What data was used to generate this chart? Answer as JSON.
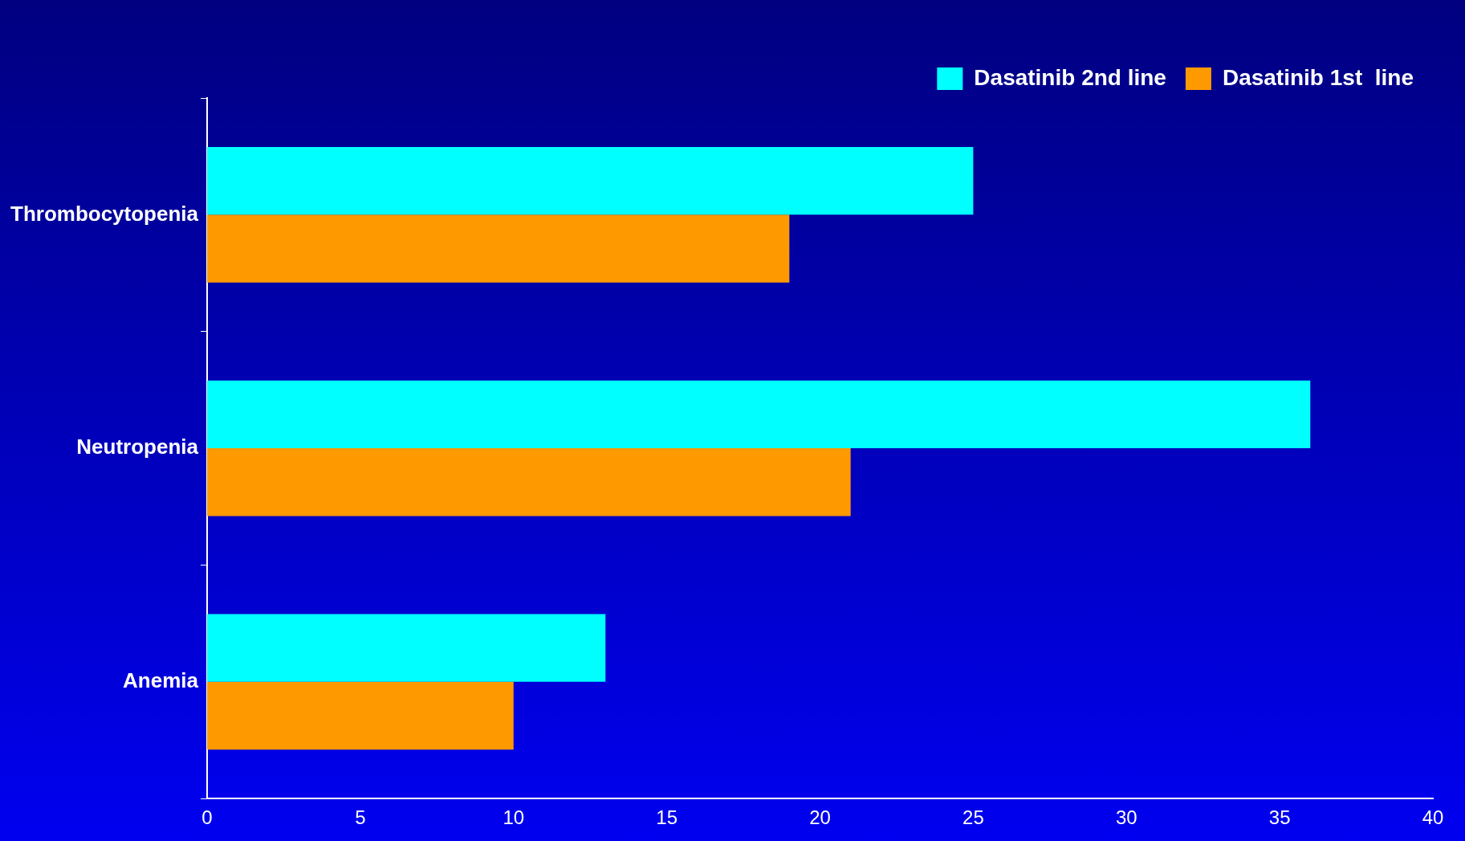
{
  "chart_data": {
    "type": "bar",
    "orientation": "horizontal",
    "categories": [
      "Thrombocytopenia",
      "Neutropenia",
      "Anemia"
    ],
    "series": [
      {
        "name": "Dasatinib 2nd line",
        "color": "#00ffff",
        "values": [
          25,
          36,
          13
        ]
      },
      {
        "name": "Dasatinib 1st  line",
        "color": "#ff9900",
        "values": [
          19,
          21,
          10
        ]
      }
    ],
    "xlim": [
      0,
      40
    ],
    "xticks": [
      0,
      5,
      10,
      15,
      20,
      25,
      30,
      35,
      40
    ],
    "grid": false,
    "legend": "top right"
  }
}
